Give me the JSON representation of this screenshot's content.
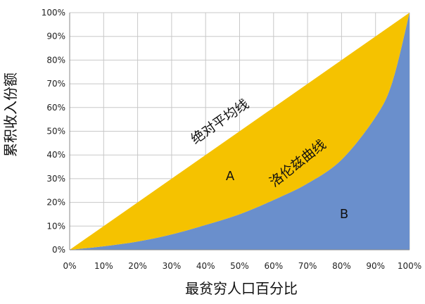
{
  "chart_data": {
    "type": "area",
    "xlabel": "最贫穷人口百分比",
    "ylabel": "累积收入份额",
    "xlim": [
      0,
      100
    ],
    "ylim": [
      0,
      100
    ],
    "grid": true,
    "x_ticks": [
      "0%",
      "10%",
      "20%",
      "30%",
      "40%",
      "50%",
      "60%",
      "70%",
      "80%",
      "90%",
      "100%"
    ],
    "y_ticks": [
      "0%",
      "10%",
      "20%",
      "30%",
      "40%",
      "50%",
      "60%",
      "70%",
      "80%",
      "90%",
      "100%"
    ],
    "series": [
      {
        "name": "绝对平均线",
        "color": "#F5C200",
        "x": [
          0,
          100
        ],
        "y": [
          0,
          100
        ]
      },
      {
        "name": "洛伦兹曲线",
        "color": "#6A8FCC",
        "x": [
          0,
          10,
          20,
          30,
          40,
          50,
          60,
          70,
          80,
          90,
          95,
          100
        ],
        "y": [
          0,
          1.5,
          3.5,
          6.5,
          10.5,
          15,
          21,
          28,
          38,
          56,
          71,
          100
        ]
      }
    ],
    "annotations": [
      {
        "id": "line",
        "text": "绝对平均线"
      },
      {
        "id": "curve",
        "text": "洛伦兹曲线"
      },
      {
        "id": "area_a",
        "text": "A"
      },
      {
        "id": "area_b",
        "text": "B"
      }
    ]
  }
}
